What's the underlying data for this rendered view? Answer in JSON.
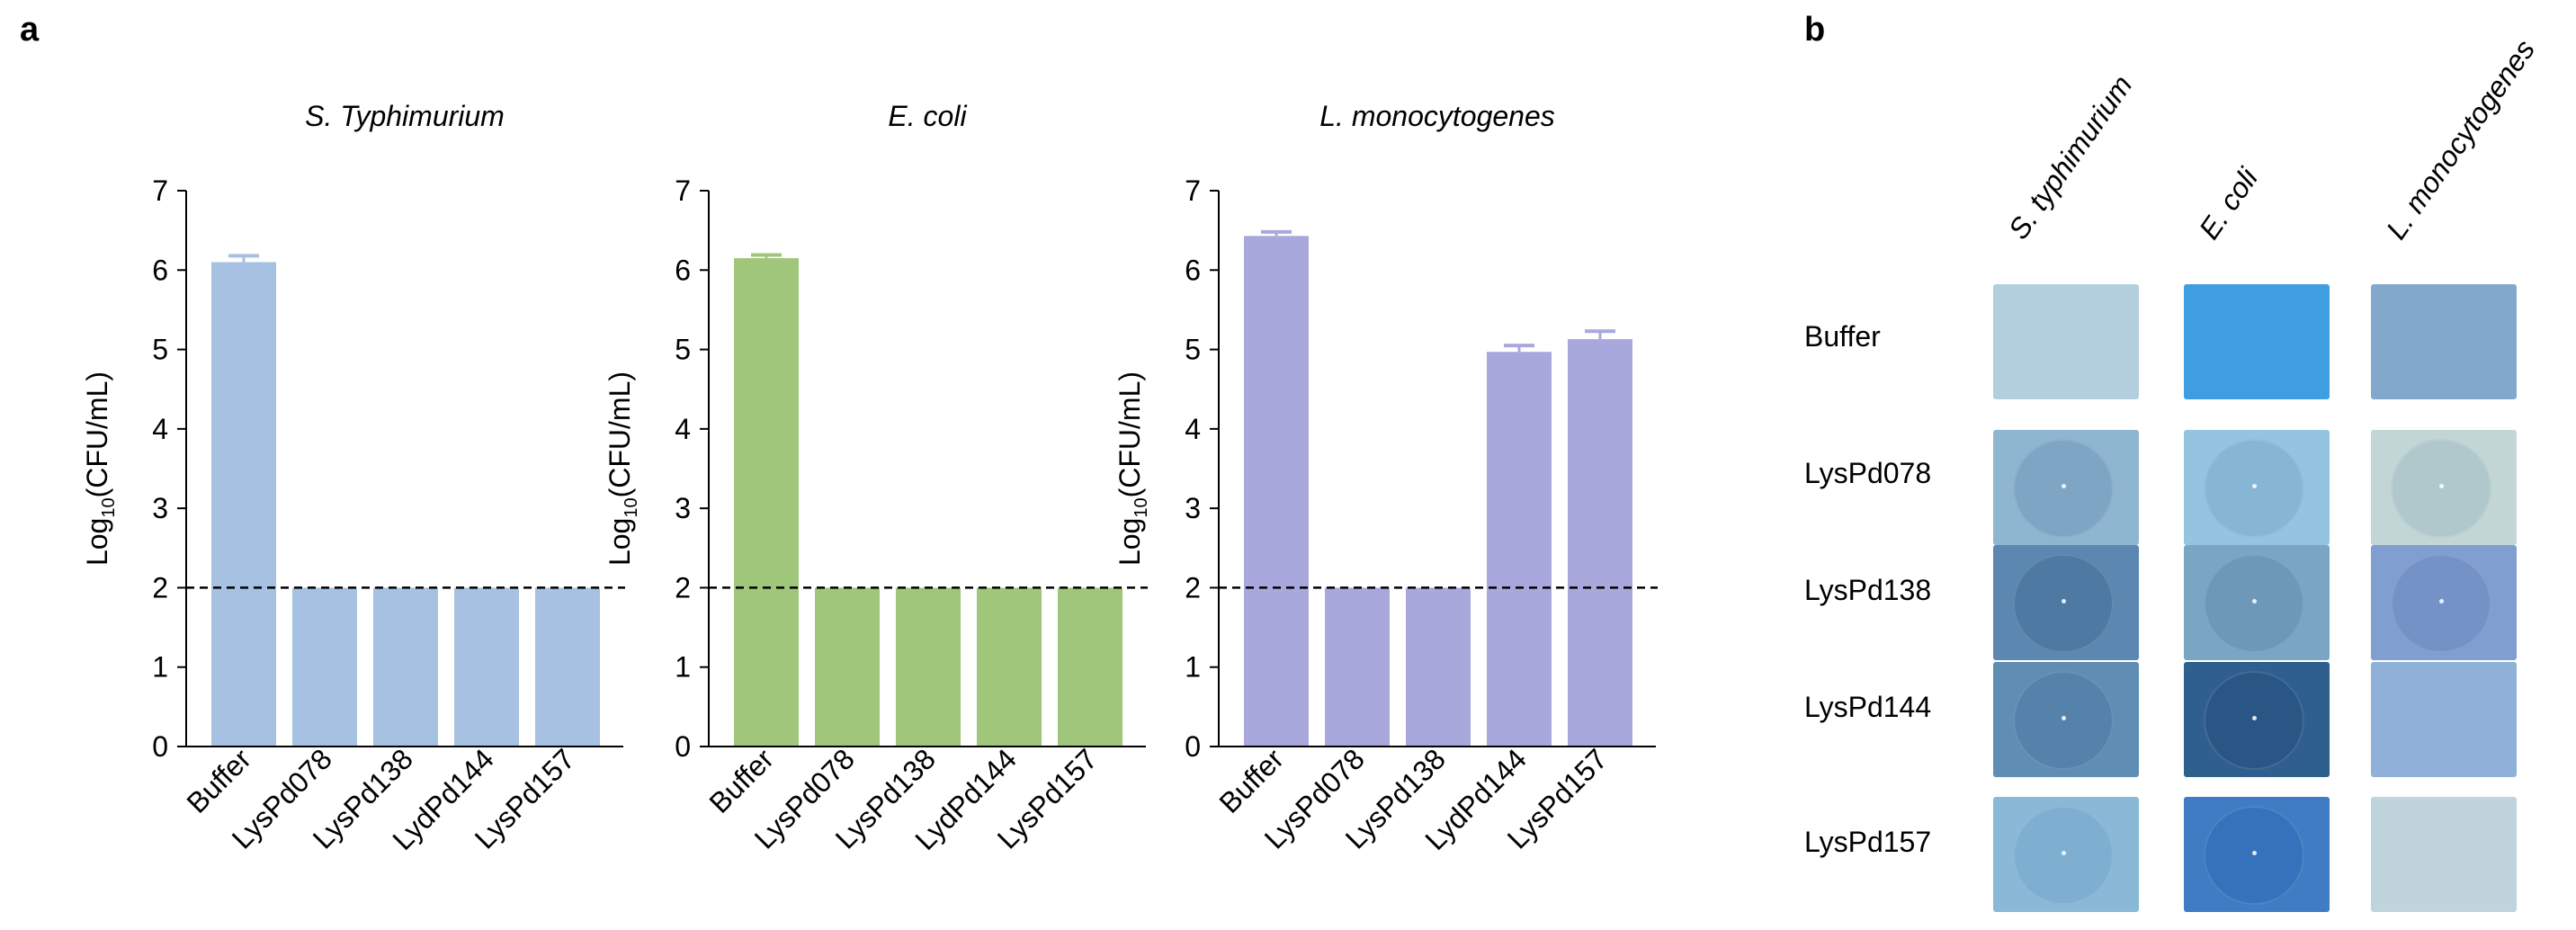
{
  "panel_labels": {
    "a": "a",
    "b": "b"
  },
  "chart_data": [
    {
      "type": "bar",
      "title": "S. Typhimurium",
      "ylabel": "Log10(CFU/mL)",
      "ylabel_base": "Log",
      "ylabel_sub": "10",
      "ylabel_rest": "(CFU/mL)",
      "xlabel": "",
      "categories": [
        "Buffer",
        "LysPd078",
        "LysPd138",
        "LydPd144",
        "LysPd157"
      ],
      "values": [
        6.1,
        2.0,
        2.0,
        2.0,
        2.0
      ],
      "errors": [
        0.08,
        0,
        0,
        0,
        0
      ],
      "ylim": [
        0,
        7
      ],
      "yticks": [
        0,
        1,
        2,
        3,
        4,
        5,
        6,
        7
      ],
      "ytick_labels": [
        "0",
        "1",
        "2",
        "3",
        "4",
        "5",
        "6",
        "7"
      ],
      "threshold": 2,
      "color": "#a7c1e2",
      "grid": false
    },
    {
      "type": "bar",
      "title": "E. coli",
      "ylabel": "Log10(CFU/mL)",
      "ylabel_base": "Log",
      "ylabel_sub": "10",
      "ylabel_rest": "(CFU/mL)",
      "xlabel": "",
      "categories": [
        "Buffer",
        "LysPd078",
        "LysPd138",
        "LydPd144",
        "LysPd157"
      ],
      "values": [
        6.15,
        2.0,
        2.0,
        2.0,
        2.0
      ],
      "errors": [
        0.04,
        0,
        0,
        0,
        0
      ],
      "ylim": [
        0,
        7
      ],
      "yticks": [
        0,
        1,
        2,
        3,
        4,
        5,
        6,
        7
      ],
      "ytick_labels": [
        "0",
        "1",
        "2",
        "3",
        "4",
        "5",
        "6",
        "7"
      ],
      "threshold": 2,
      "color": "#9fc67a",
      "grid": false
    },
    {
      "type": "bar",
      "title": "L. monocytogenes",
      "ylabel": "Log10(CFU/mL)",
      "ylabel_base": "Log",
      "ylabel_sub": "10",
      "ylabel_rest": "(CFU/mL)",
      "xlabel": "",
      "categories": [
        "Buffer",
        "LysPd078",
        "LysPd138",
        "LydPd144",
        "LysPd157"
      ],
      "values": [
        6.43,
        2.0,
        2.0,
        4.97,
        5.13
      ],
      "errors": [
        0.05,
        0,
        0,
        0.08,
        0.1
      ],
      "ylim": [
        0,
        7
      ],
      "yticks": [
        0,
        1,
        2,
        3,
        4,
        5,
        6,
        7
      ],
      "ytick_labels": [
        "0",
        "1",
        "2",
        "3",
        "4",
        "5",
        "6",
        "7"
      ],
      "threshold": 2,
      "color": "#a9a8dc",
      "grid": false
    }
  ],
  "plates": {
    "columns": [
      "S. typhimurium",
      "E. coli",
      "L. monocytogenes"
    ],
    "rows": [
      "Buffer",
      "LysPd078",
      "LysPd138",
      "LysPd144",
      "LysPd157"
    ],
    "cells": [
      [
        {
          "bg": "#b3cfdd",
          "halo": ""
        },
        {
          "bg": "#3f9ee0",
          "halo": ""
        },
        {
          "bg": "#82a9cc",
          "halo": ""
        }
      ],
      [
        {
          "bg": "#8fb6d0",
          "halo": "#7ea6c4"
        },
        {
          "bg": "#94c4e0",
          "halo": "#86b6d4"
        },
        {
          "bg": "#c3d6d6",
          "halo": "#b0c8cc"
        }
      ],
      [
        {
          "bg": "#5c87b0",
          "halo": "#4e79a2"
        },
        {
          "bg": "#7aa6c4",
          "halo": "#6d98b8"
        },
        {
          "bg": "#809fd0",
          "halo": "#7492c6"
        }
      ],
      [
        {
          "bg": "#5f8db4",
          "halo": "#5582aa"
        },
        {
          "bg": "#2f5f8e",
          "halo": "#2a5686"
        },
        {
          "bg": "#8fb0d8",
          "halo": ""
        }
      ],
      [
        {
          "bg": "#8ab9d8",
          "halo": "#7eaed0"
        },
        {
          "bg": "#3f7cc4",
          "halo": "#3671bb"
        },
        {
          "bg": "#c0d4dc",
          "halo": ""
        }
      ]
    ]
  }
}
